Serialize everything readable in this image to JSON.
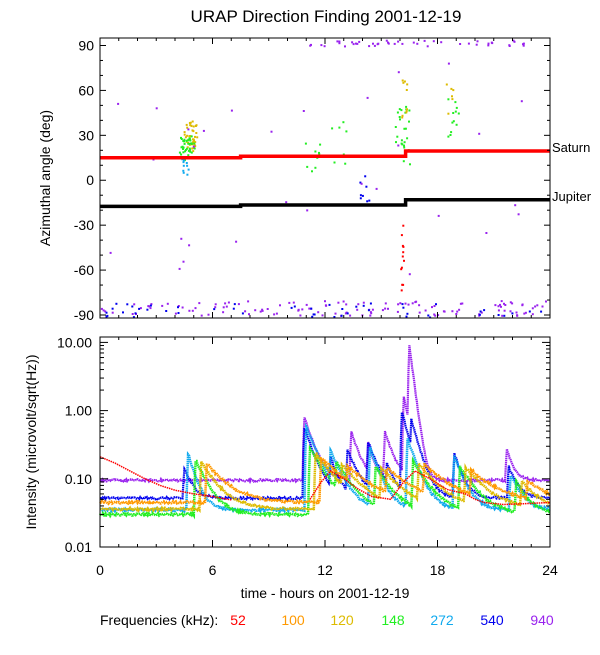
{
  "title": "URAP Direction Finding  2001-12-19",
  "colors": {
    "saturn": "#ff0000",
    "jupiter": "#000000",
    "f52": "#ff0000",
    "f100": "#ff9900",
    "f120": "#ddbb00",
    "f148": "#22ee22",
    "f272": "#11aaee",
    "f540": "#0000ee",
    "f940": "#9922ee"
  },
  "chart_data": [
    {
      "type": "scatter",
      "title": "URAP Direction Finding  2001-12-19",
      "xlabel": "",
      "ylabel": "Azimuthal angle (deg)",
      "xlim": [
        0,
        24
      ],
      "ylim": [
        -92,
        95
      ],
      "yticks": [
        90,
        60,
        30,
        0,
        -30,
        -60,
        -90
      ],
      "ytick_labels": [
        "90",
        "60",
        "30",
        "0",
        "-30",
        "-60",
        "-90"
      ],
      "grid": false,
      "series": [
        {
          "name": "Saturn",
          "style": "line",
          "x": [
            0,
            7.5,
            7.5,
            16.3,
            16.3,
            24
          ],
          "y": [
            15,
            15,
            16,
            16,
            19.5,
            19.5
          ]
        },
        {
          "name": "Jupiter",
          "style": "line",
          "x": [
            0,
            7.5,
            7.5,
            16.3,
            16.3,
            24
          ],
          "y": [
            -17.5,
            -17.5,
            -16.5,
            -16.5,
            -13,
            -13
          ]
        }
      ],
      "scatter_clusters": [
        {
          "freq": "120",
          "x": 4.8,
          "dx": 0.35,
          "y": 30,
          "dy": 10,
          "n": 45
        },
        {
          "freq": "148",
          "x": 4.6,
          "dx": 0.4,
          "y": 22,
          "dy": 8,
          "n": 40
        },
        {
          "freq": "272",
          "x": 4.5,
          "dx": 0.2,
          "y": 10,
          "dy": 6,
          "n": 12
        },
        {
          "freq": "148",
          "x": 16.1,
          "dx": 0.4,
          "y": 30,
          "dy": 20,
          "n": 25
        },
        {
          "freq": "120",
          "x": 16.2,
          "dx": 0.2,
          "y": 55,
          "dy": 15,
          "n": 10
        },
        {
          "freq": "52",
          "x": 16.1,
          "dx": 0.1,
          "y": -50,
          "dy": 25,
          "n": 12
        },
        {
          "freq": "148",
          "x": 18.8,
          "dx": 0.3,
          "y": 40,
          "dy": 15,
          "n": 12
        },
        {
          "freq": "120",
          "x": 18.6,
          "dx": 0.2,
          "y": 55,
          "dy": 10,
          "n": 6
        },
        {
          "freq": "148",
          "x": 11.3,
          "dx": 0.4,
          "y": 20,
          "dy": 15,
          "n": 10
        },
        {
          "freq": "148",
          "x": 12.8,
          "dx": 0.5,
          "y": 25,
          "dy": 15,
          "n": 8
        },
        {
          "freq": "540",
          "x": 14.1,
          "dx": 0.3,
          "y": -5,
          "dy": 10,
          "n": 8
        },
        {
          "freq": "940",
          "x": 17.0,
          "dx": 6.0,
          "y": 92,
          "dy": 2,
          "n": 45
        },
        {
          "freq": "940",
          "x": 12.0,
          "dx": 12.0,
          "y": -85,
          "dy": 5,
          "n": 130
        },
        {
          "freq": "540",
          "x": 12.0,
          "dx": 12.0,
          "y": -86,
          "dy": 5,
          "n": 50
        },
        {
          "freq": "940",
          "x": 12.0,
          "dx": 12.0,
          "y": 10,
          "dy": 75,
          "n": 30
        }
      ],
      "labels": [
        {
          "text": "Saturn",
          "x": 24.1,
          "y": 19.5
        },
        {
          "text": "Jupiter",
          "x": 24.1,
          "y": -12
        }
      ]
    },
    {
      "type": "line",
      "title": "",
      "xlabel": "time - hours on 2001-12-19",
      "ylabel": "Intensity (microvolt/sqrt(Hz))",
      "xlim": [
        0,
        24
      ],
      "ylim": [
        0.01,
        12
      ],
      "yscale": "log",
      "xticks": [
        0,
        6,
        12,
        18,
        24
      ],
      "xtick_labels": [
        "0",
        "6",
        "12",
        "18",
        "24"
      ],
      "yticks": [
        10.0,
        1.0,
        0.1,
        0.01
      ],
      "ytick_labels": [
        "10.00",
        "1.00",
        "0.10",
        "0.01"
      ],
      "grid": false,
      "series": [
        {
          "name": "940",
          "baseline": 0.095,
          "bursts": [
            [
              10.9,
              0.7,
              0.45
            ],
            [
              11.3,
              0.25,
              0.3
            ],
            [
              13.4,
              0.4,
              0.4
            ],
            [
              14.3,
              0.25,
              0.3
            ],
            [
              15.2,
              0.4,
              0.4
            ],
            [
              16.2,
              1.5,
              0.3
            ],
            [
              16.5,
              9.0,
              0.2
            ],
            [
              17.0,
              0.15,
              0.3
            ],
            [
              21.7,
              0.18,
              0.3
            ]
          ]
        },
        {
          "name": "540",
          "baseline": 0.052,
          "bursts": [
            [
              4.5,
              0.09,
              0.4
            ],
            [
              10.9,
              0.5,
              0.5
            ],
            [
              12.3,
              0.15,
              0.4
            ],
            [
              13.2,
              0.22,
              0.5
            ],
            [
              14.3,
              0.3,
              0.5
            ],
            [
              15.3,
              0.12,
              0.4
            ],
            [
              16.1,
              0.9,
              0.4
            ],
            [
              16.6,
              0.7,
              0.4
            ],
            [
              18.9,
              0.18,
              0.4
            ],
            [
              21.8,
              0.1,
              0.4
            ]
          ]
        },
        {
          "name": "272",
          "baseline": 0.035,
          "bursts": [
            [
              4.7,
              0.2,
              0.4
            ],
            [
              11.0,
              0.55,
              0.6
            ],
            [
              12.3,
              0.22,
              0.6
            ],
            [
              14.4,
              0.25,
              0.5
            ],
            [
              16.4,
              0.35,
              0.5
            ],
            [
              18.9,
              0.18,
              0.5
            ],
            [
              21.9,
              0.08,
              0.5
            ]
          ]
        },
        {
          "name": "148",
          "baseline": 0.03,
          "bursts": [
            [
              5.1,
              0.16,
              0.6
            ],
            [
              11.2,
              0.25,
              0.8
            ],
            [
              12.6,
              0.15,
              0.8
            ],
            [
              14.7,
              0.12,
              0.8
            ],
            [
              16.7,
              0.15,
              0.8
            ],
            [
              19.2,
              0.12,
              0.8
            ],
            [
              22.2,
              0.06,
              0.6
            ]
          ]
        },
        {
          "name": "120",
          "baseline": 0.036,
          "bursts": [
            [
              5.4,
              0.14,
              0.8
            ],
            [
              11.5,
              0.2,
              1.0
            ],
            [
              12.9,
              0.13,
              1.0
            ],
            [
              15.0,
              0.11,
              1.0
            ],
            [
              17.0,
              0.13,
              1.0
            ],
            [
              19.5,
              0.11,
              1.0
            ],
            [
              22.5,
              0.055,
              0.8
            ]
          ]
        },
        {
          "name": "100",
          "baseline": 0.045,
          "bursts": [
            [
              5.7,
              0.12,
              1.0
            ],
            [
              11.8,
              0.16,
              1.2
            ],
            [
              13.2,
              0.11,
              1.2
            ],
            [
              15.3,
              0.1,
              1.2
            ],
            [
              17.3,
              0.12,
              1.2
            ],
            [
              19.8,
              0.09,
              1.2
            ],
            [
              22.8,
              0.05,
              1.0
            ]
          ]
        },
        {
          "name": "52",
          "points": [
            [
              0,
              0.21
            ],
            [
              0.8,
              0.17
            ],
            [
              1.6,
              0.13
            ],
            [
              2.4,
              0.1
            ],
            [
              3.2,
              0.08
            ],
            [
              4.0,
              0.068
            ],
            [
              5.0,
              0.06
            ],
            [
              6.0,
              0.055
            ],
            [
              6.8,
              0.05
            ],
            [
              7.0,
              0.049
            ]
          ],
          "points2": [
            [
              11.2,
              0.05
            ],
            [
              11.8,
              0.09
            ],
            [
              12.3,
              0.13
            ],
            [
              13.0,
              0.1
            ],
            [
              13.8,
              0.07
            ],
            [
              14.5,
              0.055
            ],
            [
              15.5,
              0.05
            ],
            [
              16.2,
              0.09
            ],
            [
              16.8,
              0.13
            ],
            [
              17.6,
              0.1
            ],
            [
              18.5,
              0.07
            ],
            [
              19.5,
              0.06
            ],
            [
              20.0,
              0.05
            ],
            [
              20.5,
              0.045
            ],
            [
              21.5,
              0.042
            ],
            [
              22.5,
              0.043
            ],
            [
              24.0,
              0.045
            ]
          ]
        }
      ]
    }
  ],
  "xaxis_label": "time - hours on 2001-12-19",
  "legend": {
    "label": "Frequencies (kHz):",
    "items": [
      "52",
      "100",
      "120",
      "148",
      "272",
      "540",
      "940"
    ]
  }
}
